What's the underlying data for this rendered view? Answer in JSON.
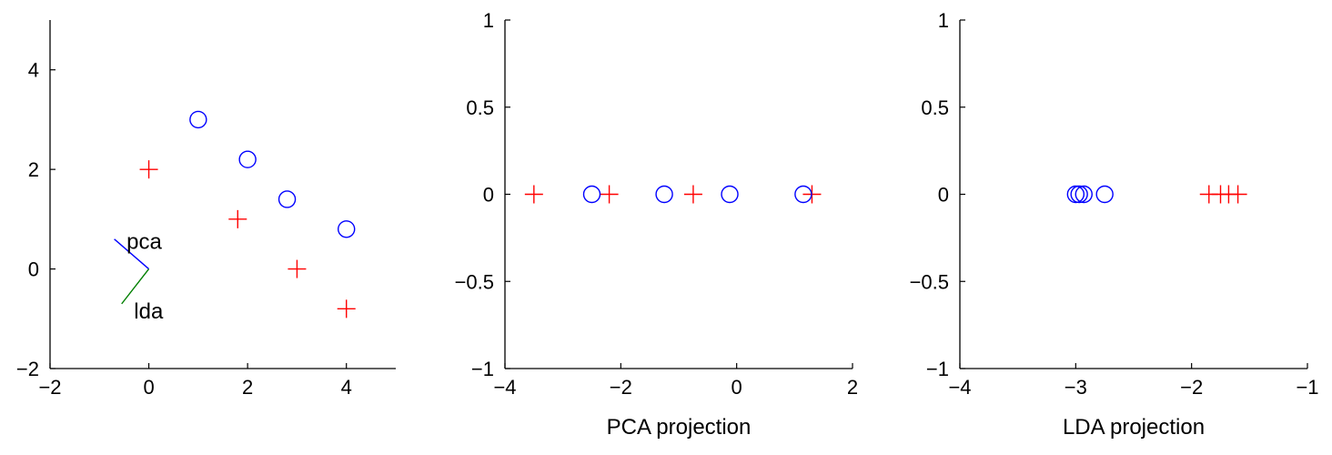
{
  "chart_data": [
    {
      "type": "scatter",
      "xlim": [
        -2,
        5
      ],
      "ylim": [
        -2,
        5
      ],
      "xticks": [
        -2,
        0,
        2,
        4
      ],
      "yticks": [
        -2,
        0,
        2,
        4
      ],
      "xtick_labels": [
        "−2",
        "0",
        "2",
        "4"
      ],
      "ytick_labels": [
        "−2",
        "0",
        "2",
        "4"
      ],
      "xlabel": "",
      "ylabel": "",
      "grid": false,
      "series": [
        {
          "marker": "plus",
          "color": "#ff0000",
          "x": [
            0,
            1.8,
            3,
            4
          ],
          "y": [
            2,
            1,
            0,
            -0.8
          ]
        },
        {
          "marker": "circle",
          "color": "#0000ff",
          "x": [
            1,
            2,
            2.8,
            4
          ],
          "y": [
            3,
            2.2,
            1.4,
            0.8
          ]
        }
      ],
      "direction_lines": [
        {
          "label": "pca",
          "color": "#0000ff",
          "from": [
            0,
            0
          ],
          "to": [
            -0.7,
            0.6
          ]
        },
        {
          "label": "lda",
          "color": "#007f00",
          "from": [
            0,
            0
          ],
          "to": [
            -0.55,
            -0.7
          ]
        }
      ],
      "annotations": [
        {
          "text": "pca",
          "x": -0.45,
          "y": 0.55
        },
        {
          "text": "lda",
          "x": -0.3,
          "y": -0.85
        }
      ]
    },
    {
      "type": "scatter",
      "xlim": [
        -4,
        2
      ],
      "ylim": [
        -1,
        1
      ],
      "xticks": [
        -4,
        -2,
        0,
        2
      ],
      "yticks": [
        -1,
        -0.5,
        0,
        0.5,
        1
      ],
      "xtick_labels": [
        "−4",
        "−2",
        "0",
        "2"
      ],
      "ytick_labels": [
        "−1",
        "−0.5",
        "0",
        "0.5",
        "1"
      ],
      "xlabel": "PCA projection",
      "ylabel": "",
      "grid": false,
      "series": [
        {
          "marker": "plus",
          "color": "#ff0000",
          "x": [
            -3.5,
            -2.2,
            -0.75,
            1.3
          ],
          "y": [
            0,
            0,
            0,
            0
          ]
        },
        {
          "marker": "circle",
          "color": "#0000ff",
          "x": [
            -2.5,
            -1.25,
            -0.12,
            1.15
          ],
          "y": [
            0,
            0,
            0,
            0
          ]
        }
      ]
    },
    {
      "type": "scatter",
      "xlim": [
        -4,
        -1
      ],
      "ylim": [
        -1,
        1
      ],
      "xticks": [
        -4,
        -3,
        -2,
        -1
      ],
      "yticks": [
        -1,
        -0.5,
        0,
        0.5,
        1
      ],
      "xtick_labels": [
        "−4",
        "−3",
        "−2",
        "−1"
      ],
      "ytick_labels": [
        "−1",
        "−0.5",
        "0",
        "0.5",
        "1"
      ],
      "xlabel": "LDA projection",
      "ylabel": "",
      "grid": false,
      "series": [
        {
          "marker": "plus",
          "color": "#ff0000",
          "x": [
            -1.85,
            -1.75,
            -1.68,
            -1.6
          ],
          "y": [
            0,
            0,
            0,
            0
          ]
        },
        {
          "marker": "circle",
          "color": "#0000ff",
          "x": [
            -3.0,
            -2.97,
            -2.93,
            -2.75
          ],
          "y": [
            0,
            0,
            0,
            0
          ]
        }
      ]
    }
  ]
}
